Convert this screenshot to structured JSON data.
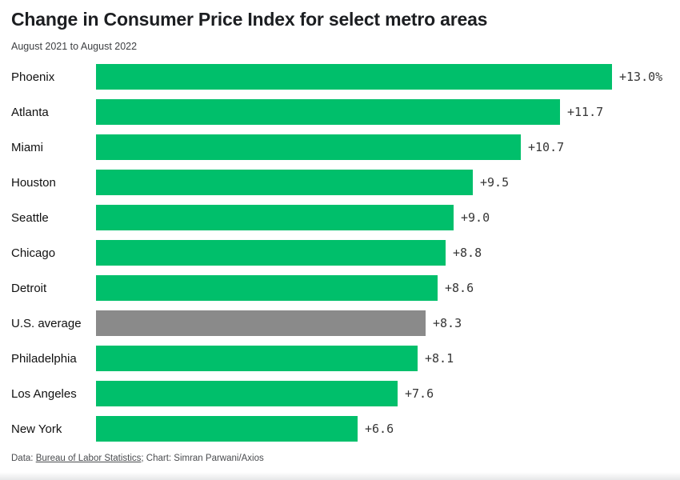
{
  "header": {
    "title": "Change in Consumer Price Index for select metro areas",
    "subtitle": "August 2021 to August 2022"
  },
  "chart_data": {
    "type": "bar",
    "orientation": "horizontal",
    "title": "Change in Consumer Price Index for select metro areas",
    "subtitle": "August 2021 to August 2022",
    "categories": [
      "Phoenix",
      "Atlanta",
      "Miami",
      "Houston",
      "Seattle",
      "Chicago",
      "Detroit",
      "U.S. average",
      "Philadelphia",
      "Los Angeles",
      "New York"
    ],
    "values": [
      13.0,
      11.7,
      10.7,
      9.5,
      9.0,
      8.8,
      8.6,
      8.3,
      8.1,
      7.6,
      6.6
    ],
    "value_labels": [
      "+13.0%",
      "+11.7",
      "+10.7",
      "+9.5",
      "+9.0",
      "+8.8",
      "+8.6",
      "+8.3",
      "+8.1",
      "+7.6",
      "+6.6"
    ],
    "unit": "percent",
    "xlim": [
      0,
      13.0
    ],
    "grid": false,
    "legend": false,
    "bar_color": "#00bf6b",
    "highlight_category": "U.S. average",
    "highlight_color": "#8a8a8a"
  },
  "footer": {
    "data_prefix": "Data: ",
    "source_link": "Bureau of Labor Statistics",
    "separator": "; ",
    "credit": "Chart: Simran Parwani/Axios"
  }
}
